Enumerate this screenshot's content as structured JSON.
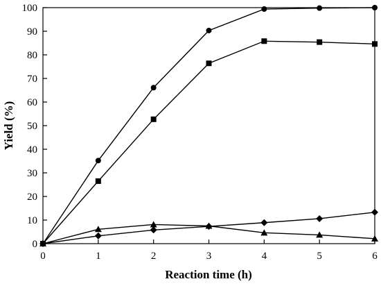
{
  "chart_data": {
    "type": "line",
    "title": "",
    "xlabel": "Reaction time (h)",
    "ylabel": "Yield (%)",
    "xlim": [
      0,
      6
    ],
    "ylim": [
      0,
      100
    ],
    "x_ticks": [
      0,
      1,
      2,
      3,
      4,
      5,
      6
    ],
    "y_ticks": [
      0,
      10,
      20,
      30,
      40,
      50,
      60,
      70,
      80,
      90,
      100
    ],
    "grid": false,
    "legend": "none",
    "x": [
      0,
      1,
      2,
      3,
      4,
      5,
      6
    ],
    "series": [
      {
        "marker": "circle",
        "color": "#000000",
        "values": [
          0,
          35.2,
          66.1,
          90.3,
          99.4,
          99.8,
          100
        ]
      },
      {
        "marker": "square",
        "color": "#000000",
        "values": [
          0,
          26.5,
          52.7,
          76.4,
          85.8,
          85.4,
          84.6
        ]
      },
      {
        "marker": "diamond",
        "color": "#000000",
        "values": [
          0,
          3.3,
          5.8,
          7.3,
          8.9,
          10.6,
          13.3
        ]
      },
      {
        "marker": "triangle",
        "color": "#000000",
        "values": [
          0,
          6.1,
          8.1,
          7.5,
          4.6,
          3.7,
          2.1
        ]
      }
    ]
  }
}
